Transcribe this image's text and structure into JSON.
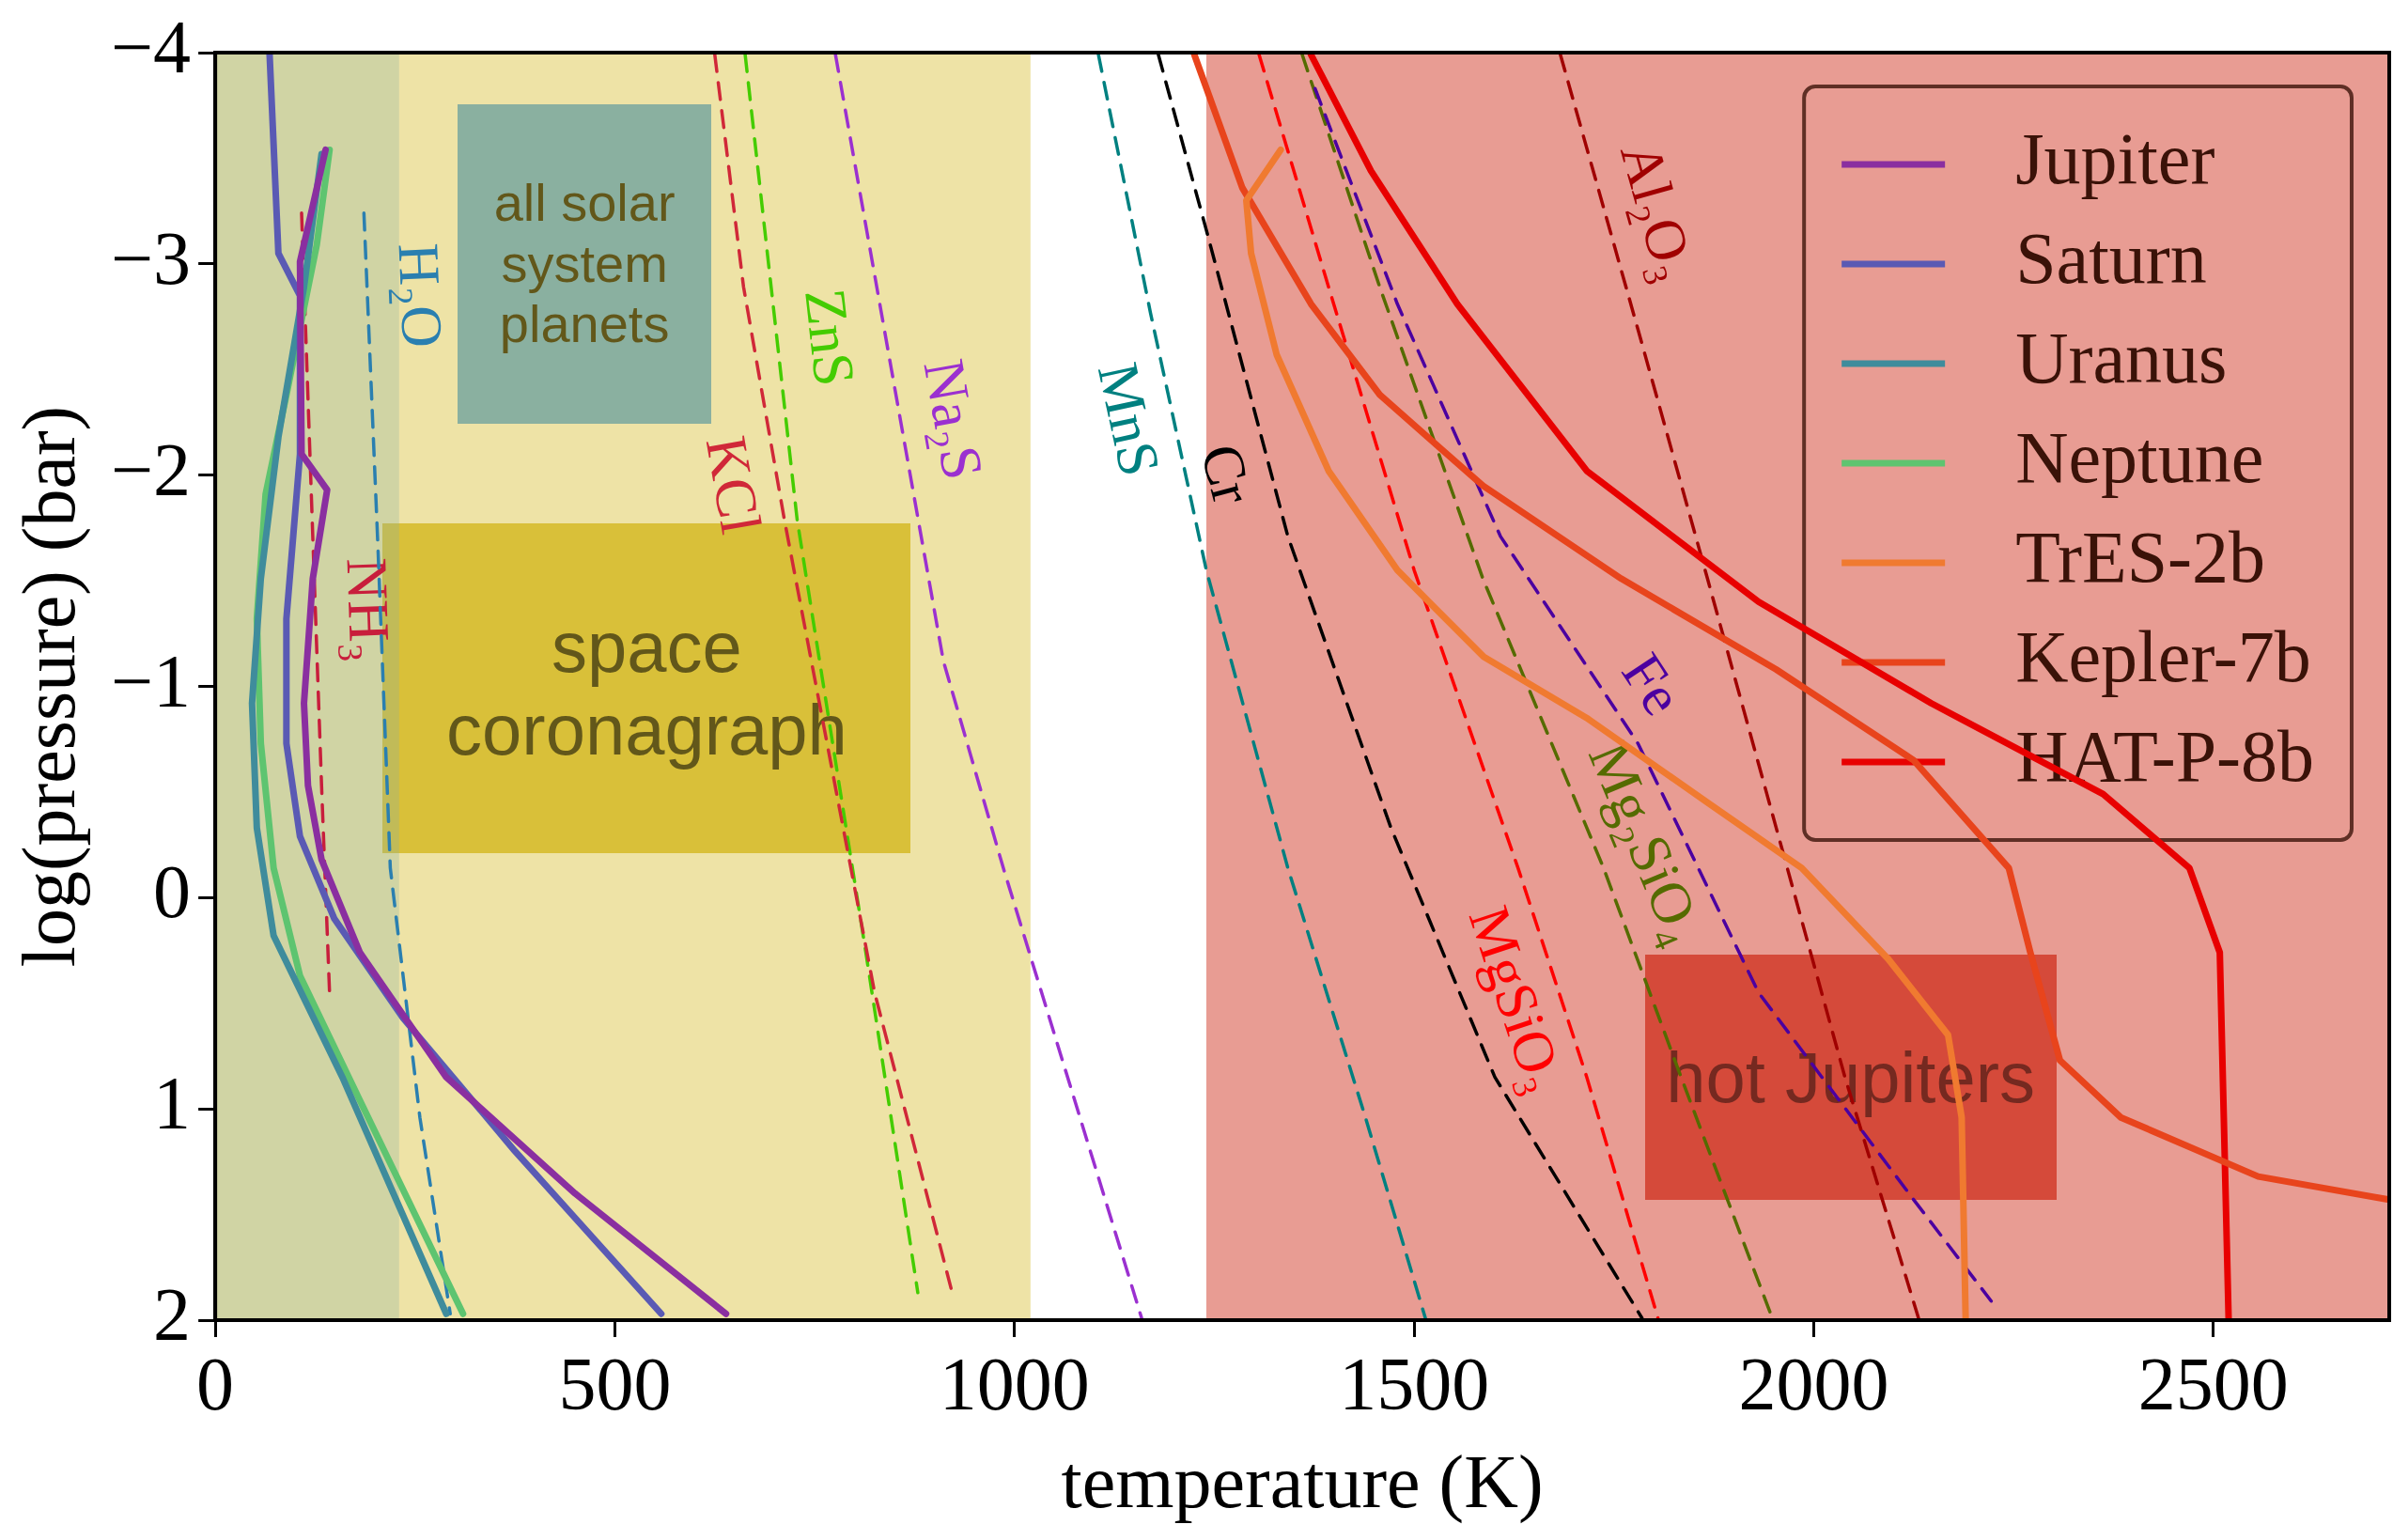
{
  "chart_data": {
    "type": "line",
    "xlabel": "temperature (K)",
    "ylabel": "log(pressure) (bar)",
    "xlim": [
      0,
      2720
    ],
    "xticks": [
      0,
      500,
      1000,
      1500,
      2000,
      2500
    ],
    "ylim": [
      2,
      -4
    ],
    "yticks": [
      {
        "value": -4,
        "label": "−4"
      },
      {
        "value": -3,
        "label": "−3"
      },
      {
        "value": -2,
        "label": "−2"
      },
      {
        "value": -1,
        "label": "−1"
      },
      0,
      1,
      2
    ],
    "legend": "top right",
    "series": [
      {
        "name": "Jupiter",
        "color": "#8a2fa0",
        "x": [
          138,
          106,
          108,
          140,
          122,
          111,
          116,
          133,
          181,
          289,
          450,
          639
        ],
        "values": [
          -3.54,
          -3.01,
          -2.1,
          -1.93,
          -1.51,
          -0.92,
          -0.53,
          -0.18,
          0.26,
          0.85,
          1.4,
          1.97
        ]
      },
      {
        "name": "Saturn",
        "color": "#5a5ab4",
        "x": [
          68,
          79,
          106,
          106,
          89,
          89,
          106,
          149,
          235,
          375,
          558
        ],
        "values": [
          -3.99,
          -3.05,
          -2.85,
          -2.1,
          -1.32,
          -0.73,
          -0.29,
          0.1,
          0.57,
          1.2,
          1.97
        ]
      },
      {
        "name": "Uranus",
        "color": "#3f8c9c",
        "x": [
          133,
          111,
          79,
          57,
          46,
          52,
          73,
          159,
          289
        ],
        "values": [
          -3.52,
          -2.89,
          -2.18,
          -1.51,
          -0.92,
          -0.33,
          0.18,
          0.85,
          1.97
        ]
      },
      {
        "name": "Neptune",
        "color": "#5ec470",
        "x": [
          143,
          127,
          89,
          63,
          52,
          57,
          73,
          106,
          181,
          310
        ],
        "values": [
          -3.54,
          -3.09,
          -2.38,
          -1.91,
          -1.32,
          -0.73,
          -0.14,
          0.37,
          0.96,
          1.97
        ]
      },
      {
        "name": "TrES-2b",
        "color": "#f07a30",
        "x": [
          1333,
          1290,
          1296,
          1328,
          1393,
          1479,
          1587,
          1716,
          1867,
          1985,
          2093,
          2168,
          2185,
          2190
        ],
        "values": [
          -3.54,
          -3.3,
          -3.05,
          -2.57,
          -2.02,
          -1.55,
          -1.14,
          -0.85,
          -0.45,
          -0.14,
          0.29,
          0.65,
          1.04,
          1.99
        ]
      },
      {
        "name": "Kepler-7b",
        "color": "#e8441c",
        "x": [
          1225,
          1285,
          1371,
          1457,
          1586,
          1759,
          1953,
          2125,
          2244,
          2271,
          2308,
          2384,
          2556,
          2720
        ],
        "values": [
          -3.99,
          -3.36,
          -2.81,
          -2.38,
          -1.95,
          -1.51,
          -1.08,
          -0.65,
          -0.14,
          0.26,
          0.77,
          1.04,
          1.32,
          1.43
        ]
      },
      {
        "name": "HAT-P-8b",
        "color": "#e80000",
        "x": [
          1371,
          1446,
          1554,
          1716,
          1931,
          2147,
          2362,
          2470,
          2508,
          2513,
          2519
        ],
        "values": [
          -3.99,
          -3.44,
          -2.81,
          -2.02,
          -1.4,
          -0.92,
          -0.49,
          -0.14,
          0.26,
          1.04,
          1.99
        ]
      },
      {
        "name": "H₂O",
        "color": "#2a7fb0",
        "line_style": "dashed",
        "x": [
          186,
          203,
          219,
          256,
          294
        ],
        "values": [
          -3.24,
          -1.71,
          -0.14,
          1.04,
          1.97
        ]
      },
      {
        "name": "NH₃",
        "color": "#c81e3c",
        "line_style": "dashed",
        "x": [
          108,
          122,
          133,
          143
        ],
        "values": [
          -3.24,
          -1.71,
          -0.53,
          0.45
        ]
      },
      {
        "name": "KCl",
        "color": "#d02838",
        "line_style": "dashed",
        "x": [
          625,
          661,
          712,
          825,
          922
        ],
        "values": [
          -3.99,
          -2.89,
          -1.79,
          0.45,
          1.87
        ]
      },
      {
        "name": "ZnS",
        "color": "#44cc00",
        "line_style": "dashed",
        "x": [
          663,
          728,
          814,
          879
        ],
        "values": [
          -3.99,
          -1.79,
          0.26,
          1.87
        ]
      },
      {
        "name": "Na₂S",
        "color": "#9b30d0",
        "line_style": "dashed",
        "x": [
          776,
          846,
          911,
          986,
          1159
        ],
        "values": [
          -3.99,
          -2.5,
          -1.12,
          -0.14,
          1.99
        ]
      },
      {
        "name": "MnS",
        "color": "#008080",
        "line_style": "dashed",
        "x": [
          1105,
          1170,
          1240,
          1342,
          1439,
          1514
        ],
        "values": [
          -3.99,
          -2.77,
          -1.55,
          -0.14,
          1.04,
          1.99
        ]
      },
      {
        "name": "Cr",
        "color": "#000000",
        "line_style": "dashed",
        "x": [
          1180,
          1240,
          1342,
          1471,
          1601,
          1785
        ],
        "values": [
          -3.99,
          -3.16,
          -1.71,
          -0.33,
          0.85,
          1.99
        ]
      },
      {
        "name": "MgSiO₃",
        "color": "#ff0000",
        "line_style": "dashed",
        "x": [
          1306,
          1393,
          1500,
          1630,
          1716,
          1805
        ],
        "values": [
          -3.99,
          -2.89,
          -1.55,
          -0.14,
          0.85,
          1.99
        ]
      },
      {
        "name": "Fe",
        "color": "#4b00a0",
        "line_style": "dashed",
        "x": [
          1376,
          1479,
          1608,
          1780,
          1931,
          2125,
          2222
        ],
        "values": [
          -3.83,
          -2.81,
          -1.71,
          -0.73,
          0.45,
          1.43,
          1.91
        ]
      },
      {
        "name": "Mg₂SiO₄",
        "color": "#556b00",
        "line_style": "dashed",
        "x": [
          1360,
          1457,
          1586,
          1737,
          1834,
          1948
        ],
        "values": [
          -3.99,
          -2.89,
          -1.51,
          -0.14,
          0.85,
          1.99
        ]
      },
      {
        "name": "Al₂O₃",
        "color": "#a00000",
        "line_style": "dashed",
        "x": [
          1683,
          1780,
          1867,
          1953,
          2039,
          2131
        ],
        "values": [
          -3.99,
          -2.69,
          -1.51,
          -0.33,
          0.85,
          1.99
        ]
      }
    ],
    "bands": [
      {
        "axis": "x",
        "from": 0,
        "to": 230,
        "label": "all solar system planets",
        "color": "#4aa3f5"
      },
      {
        "axis": "x",
        "from": 0,
        "to": 1020,
        "label": "space coronagraph",
        "color": "#d9c03a"
      },
      {
        "axis": "x",
        "from": 1240,
        "to": 2720,
        "label": "hot Jupiters",
        "color": "#d64a3a"
      }
    ]
  }
}
